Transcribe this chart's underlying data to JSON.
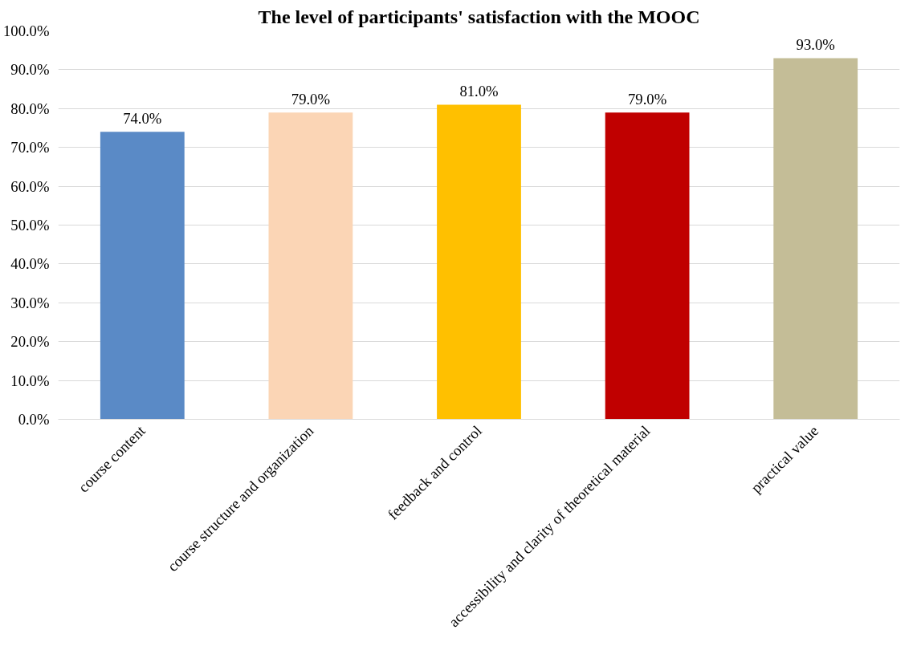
{
  "chart_data": {
    "type": "bar",
    "title": "The level of participants' satisfaction with the MOOC",
    "categories": [
      "course content",
      "course structure and organization",
      "feedback and control",
      "accessibility and clarity of theoretical material",
      "practical value"
    ],
    "values": [
      74,
      79,
      81,
      79,
      93
    ],
    "colors": [
      "#5a8ac6",
      "#fbd5b5",
      "#ffc000",
      "#c00000",
      "#c4bd97"
    ],
    "value_labels": [
      "74.0%",
      "79.0%",
      "81.0%",
      "79.0%",
      "93.0%"
    ],
    "ylim": [
      0,
      100
    ],
    "yticks": [
      {
        "value": 0,
        "label": "0.0%"
      },
      {
        "value": 10,
        "label": "10.0%"
      },
      {
        "value": 20,
        "label": "20.0%"
      },
      {
        "value": 30,
        "label": "30.0%"
      },
      {
        "value": 40,
        "label": "40.0%"
      },
      {
        "value": 50,
        "label": "50.0%"
      },
      {
        "value": 60,
        "label": "60.0%"
      },
      {
        "value": 70,
        "label": "70.0%"
      },
      {
        "value": 80,
        "label": "80.0%"
      },
      {
        "value": 90,
        "label": "90.0%"
      },
      {
        "value": 100,
        "label": "100.0%"
      }
    ],
    "grid": "y"
  }
}
